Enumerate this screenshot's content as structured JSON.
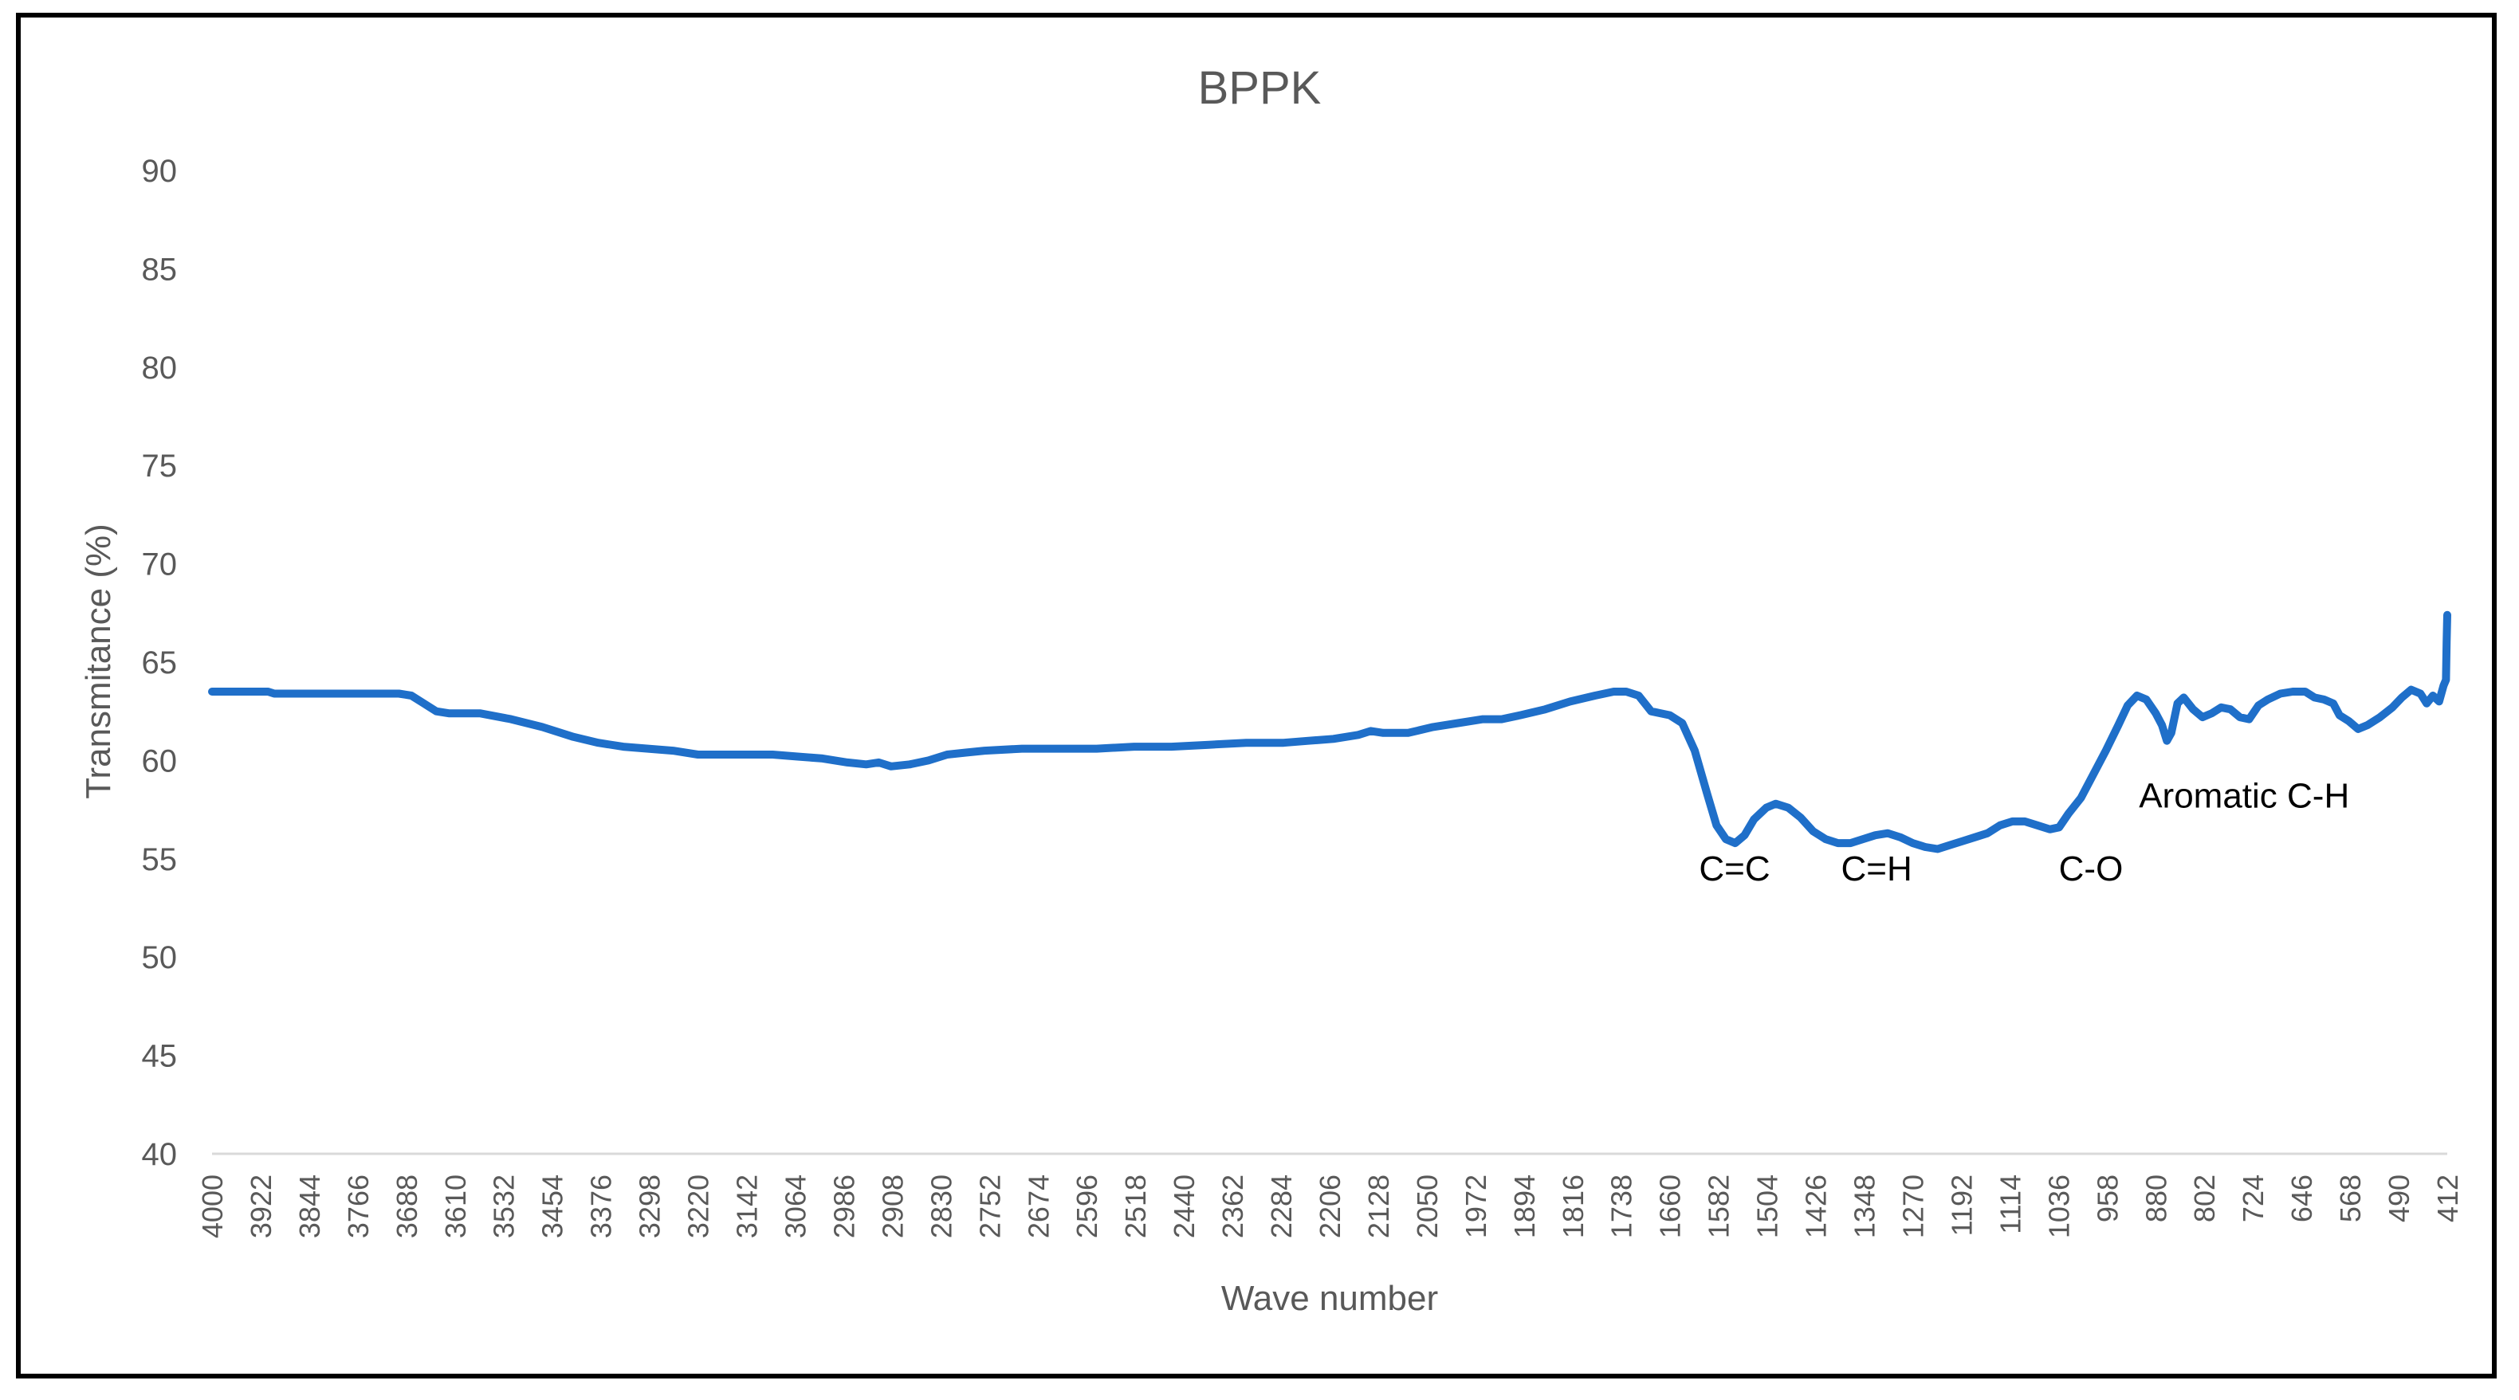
{
  "chart_data": {
    "type": "line",
    "title": "BPPK",
    "xlabel": "Wave number",
    "ylabel": "Transmitance (%)",
    "xlim": [
      4000,
      412
    ],
    "ylim": [
      40,
      90
    ],
    "y_ticks": [
      40,
      45,
      50,
      55,
      60,
      65,
      70,
      75,
      80,
      85,
      90
    ],
    "x_ticks": [
      4000,
      3922,
      3844,
      3766,
      3688,
      3610,
      3532,
      3454,
      3376,
      3298,
      3220,
      3142,
      3064,
      2986,
      2908,
      2830,
      2752,
      2674,
      2596,
      2518,
      2440,
      2362,
      2284,
      2206,
      2128,
      2050,
      1972,
      1894,
      1816,
      1738,
      1660,
      1582,
      1504,
      1426,
      1348,
      1270,
      1192,
      1114,
      1036,
      958,
      880,
      802,
      724,
      646,
      568,
      490,
      412
    ],
    "grid": false,
    "legend": "none",
    "series": [
      {
        "color": "#1f6fc9",
        "points": [
          [
            4000,
            63.5
          ],
          [
            3910,
            63.5
          ],
          [
            3900,
            63.4
          ],
          [
            3800,
            63.4
          ],
          [
            3700,
            63.4
          ],
          [
            3680,
            63.3
          ],
          [
            3660,
            62.9
          ],
          [
            3640,
            62.5
          ],
          [
            3620,
            62.4
          ],
          [
            3570,
            62.4
          ],
          [
            3520,
            62.1
          ],
          [
            3470,
            61.7
          ],
          [
            3420,
            61.2
          ],
          [
            3380,
            60.9
          ],
          [
            3340,
            60.7
          ],
          [
            3300,
            60.6
          ],
          [
            3260,
            60.5
          ],
          [
            3220,
            60.3
          ],
          [
            3180,
            60.3
          ],
          [
            3140,
            60.3
          ],
          [
            3100,
            60.3
          ],
          [
            3060,
            60.2
          ],
          [
            3020,
            60.1
          ],
          [
            2980,
            59.9
          ],
          [
            2950,
            59.8
          ],
          [
            2930,
            59.9
          ],
          [
            2910,
            59.7
          ],
          [
            2880,
            59.8
          ],
          [
            2850,
            60.0
          ],
          [
            2820,
            60.3
          ],
          [
            2790,
            60.4
          ],
          [
            2760,
            60.5
          ],
          [
            2700,
            60.6
          ],
          [
            2640,
            60.6
          ],
          [
            2580,
            60.6
          ],
          [
            2520,
            60.7
          ],
          [
            2460,
            60.7
          ],
          [
            2400,
            60.8
          ],
          [
            2340,
            60.9
          ],
          [
            2280,
            60.9
          ],
          [
            2240,
            61.0
          ],
          [
            2200,
            61.1
          ],
          [
            2160,
            61.3
          ],
          [
            2140,
            61.5
          ],
          [
            2120,
            61.4
          ],
          [
            2080,
            61.4
          ],
          [
            2040,
            61.7
          ],
          [
            2000,
            61.9
          ],
          [
            1960,
            62.1
          ],
          [
            1930,
            62.1
          ],
          [
            1900,
            62.3
          ],
          [
            1860,
            62.6
          ],
          [
            1820,
            63.0
          ],
          [
            1780,
            63.3
          ],
          [
            1750,
            63.5
          ],
          [
            1730,
            63.5
          ],
          [
            1710,
            63.3
          ],
          [
            1690,
            62.5
          ],
          [
            1660,
            62.3
          ],
          [
            1640,
            61.9
          ],
          [
            1620,
            60.5
          ],
          [
            1600,
            58.3
          ],
          [
            1585,
            56.7
          ],
          [
            1570,
            56.0
          ],
          [
            1555,
            55.8
          ],
          [
            1540,
            56.2
          ],
          [
            1525,
            57.0
          ],
          [
            1505,
            57.6
          ],
          [
            1490,
            57.8
          ],
          [
            1470,
            57.6
          ],
          [
            1450,
            57.1
          ],
          [
            1430,
            56.4
          ],
          [
            1410,
            56.0
          ],
          [
            1390,
            55.8
          ],
          [
            1370,
            55.8
          ],
          [
            1350,
            56.0
          ],
          [
            1330,
            56.2
          ],
          [
            1310,
            56.3
          ],
          [
            1290,
            56.1
          ],
          [
            1270,
            55.8
          ],
          [
            1250,
            55.6
          ],
          [
            1230,
            55.5
          ],
          [
            1210,
            55.7
          ],
          [
            1190,
            55.9
          ],
          [
            1170,
            56.1
          ],
          [
            1150,
            56.3
          ],
          [
            1130,
            56.7
          ],
          [
            1110,
            56.9
          ],
          [
            1090,
            56.9
          ],
          [
            1070,
            56.7
          ],
          [
            1050,
            56.5
          ],
          [
            1035,
            56.6
          ],
          [
            1020,
            57.3
          ],
          [
            1000,
            58.1
          ],
          [
            980,
            59.3
          ],
          [
            960,
            60.5
          ],
          [
            940,
            61.8
          ],
          [
            925,
            62.8
          ],
          [
            910,
            63.3
          ],
          [
            895,
            63.1
          ],
          [
            880,
            62.4
          ],
          [
            870,
            61.8
          ],
          [
            862,
            61.0
          ],
          [
            855,
            61.4
          ],
          [
            845,
            62.9
          ],
          [
            835,
            63.2
          ],
          [
            820,
            62.6
          ],
          [
            805,
            62.2
          ],
          [
            790,
            62.4
          ],
          [
            775,
            62.7
          ],
          [
            760,
            62.6
          ],
          [
            745,
            62.2
          ],
          [
            730,
            62.1
          ],
          [
            715,
            62.8
          ],
          [
            700,
            63.1
          ],
          [
            680,
            63.4
          ],
          [
            660,
            63.5
          ],
          [
            640,
            63.5
          ],
          [
            625,
            63.2
          ],
          [
            610,
            63.1
          ],
          [
            595,
            62.9
          ],
          [
            585,
            62.3
          ],
          [
            570,
            62.0
          ],
          [
            555,
            61.6
          ],
          [
            540,
            61.8
          ],
          [
            520,
            62.2
          ],
          [
            500,
            62.7
          ],
          [
            485,
            63.2
          ],
          [
            470,
            63.6
          ],
          [
            455,
            63.4
          ],
          [
            445,
            62.9
          ],
          [
            435,
            63.3
          ],
          [
            425,
            63.0
          ],
          [
            418,
            63.8
          ],
          [
            414,
            64.1
          ],
          [
            413,
            66.0
          ],
          [
            412,
            67.4
          ]
        ]
      }
    ],
    "annotations": [
      {
        "text": "C=C",
        "x": 1556,
        "y": 53.9
      },
      {
        "text": "C=H",
        "x": 1328,
        "y": 53.9
      },
      {
        "text": "C-O",
        "x": 984,
        "y": 53.9
      },
      {
        "text": "Aromatic C-H",
        "x": 738,
        "y": 57.6
      }
    ]
  }
}
